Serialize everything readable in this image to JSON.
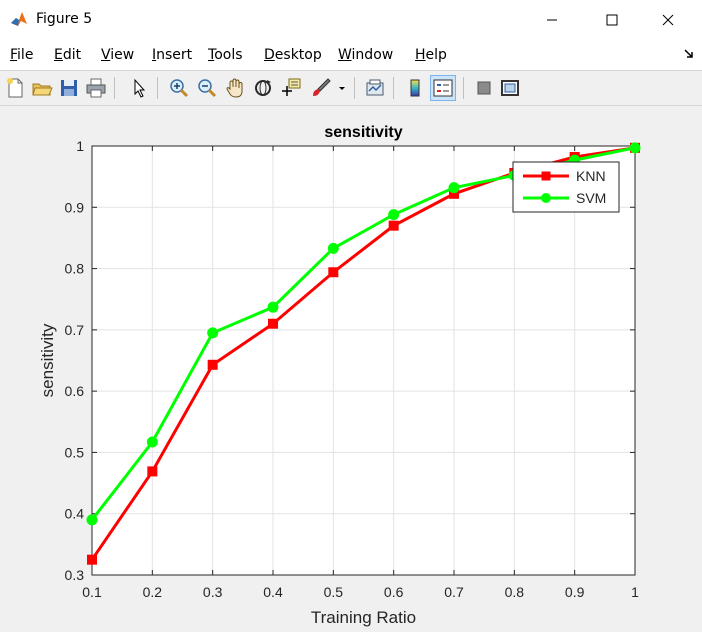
{
  "window": {
    "title": "Figure 5"
  },
  "menu": [
    {
      "mn": "F",
      "rest": "ile"
    },
    {
      "mn": "E",
      "rest": "dit"
    },
    {
      "mn": "V",
      "rest": "iew"
    },
    {
      "mn": "I",
      "rest": "nsert"
    },
    {
      "mn": "T",
      "rest": "ools"
    },
    {
      "mn": "D",
      "rest": "esktop"
    },
    {
      "mn": "W",
      "rest": "indow"
    },
    {
      "mn": "H",
      "rest": "elp"
    }
  ],
  "toolbar": [
    "new-figure-icon",
    "open-file-icon",
    "save-icon",
    "print-icon",
    "pointer-icon",
    "zoom-in-icon",
    "zoom-out-icon",
    "pan-hand-icon",
    "rotate-3d-icon",
    "data-cursor-icon",
    "brush-icon",
    "brush-dropdown-icon",
    "link-plot-icon",
    "colorbar-icon",
    "legend-icon",
    "hide-tools-icon",
    "show-tools-icon"
  ],
  "chart_data": {
    "type": "line",
    "title": "sensitivity",
    "xlabel": "Training Ratio",
    "ylabel": "sensitivity",
    "xlim": [
      0.1,
      1
    ],
    "ylim": [
      0.3,
      1
    ],
    "x": [
      0.1,
      0.2,
      0.3,
      0.4,
      0.5,
      0.6,
      0.7,
      0.8,
      0.9,
      1
    ],
    "xticks": [
      "0.1",
      "0.2",
      "0.3",
      "0.4",
      "0.5",
      "0.6",
      "0.7",
      "0.8",
      "0.9",
      "1"
    ],
    "yticks": [
      "0.3",
      "0.4",
      "0.5",
      "0.6",
      "0.7",
      "0.8",
      "0.9",
      "1"
    ],
    "grid": true,
    "legend_position": "top-right",
    "series": [
      {
        "name": "KNN",
        "color": "#ff0000",
        "marker": "square",
        "values": [
          0.325,
          0.469,
          0.643,
          0.71,
          0.794,
          0.87,
          0.922,
          0.956,
          0.982,
          0.997
        ]
      },
      {
        "name": "SVM",
        "color": "#00ff00",
        "marker": "circle",
        "values": [
          0.39,
          0.517,
          0.695,
          0.737,
          0.833,
          0.888,
          0.932,
          0.952,
          0.977,
          0.997
        ]
      }
    ]
  }
}
